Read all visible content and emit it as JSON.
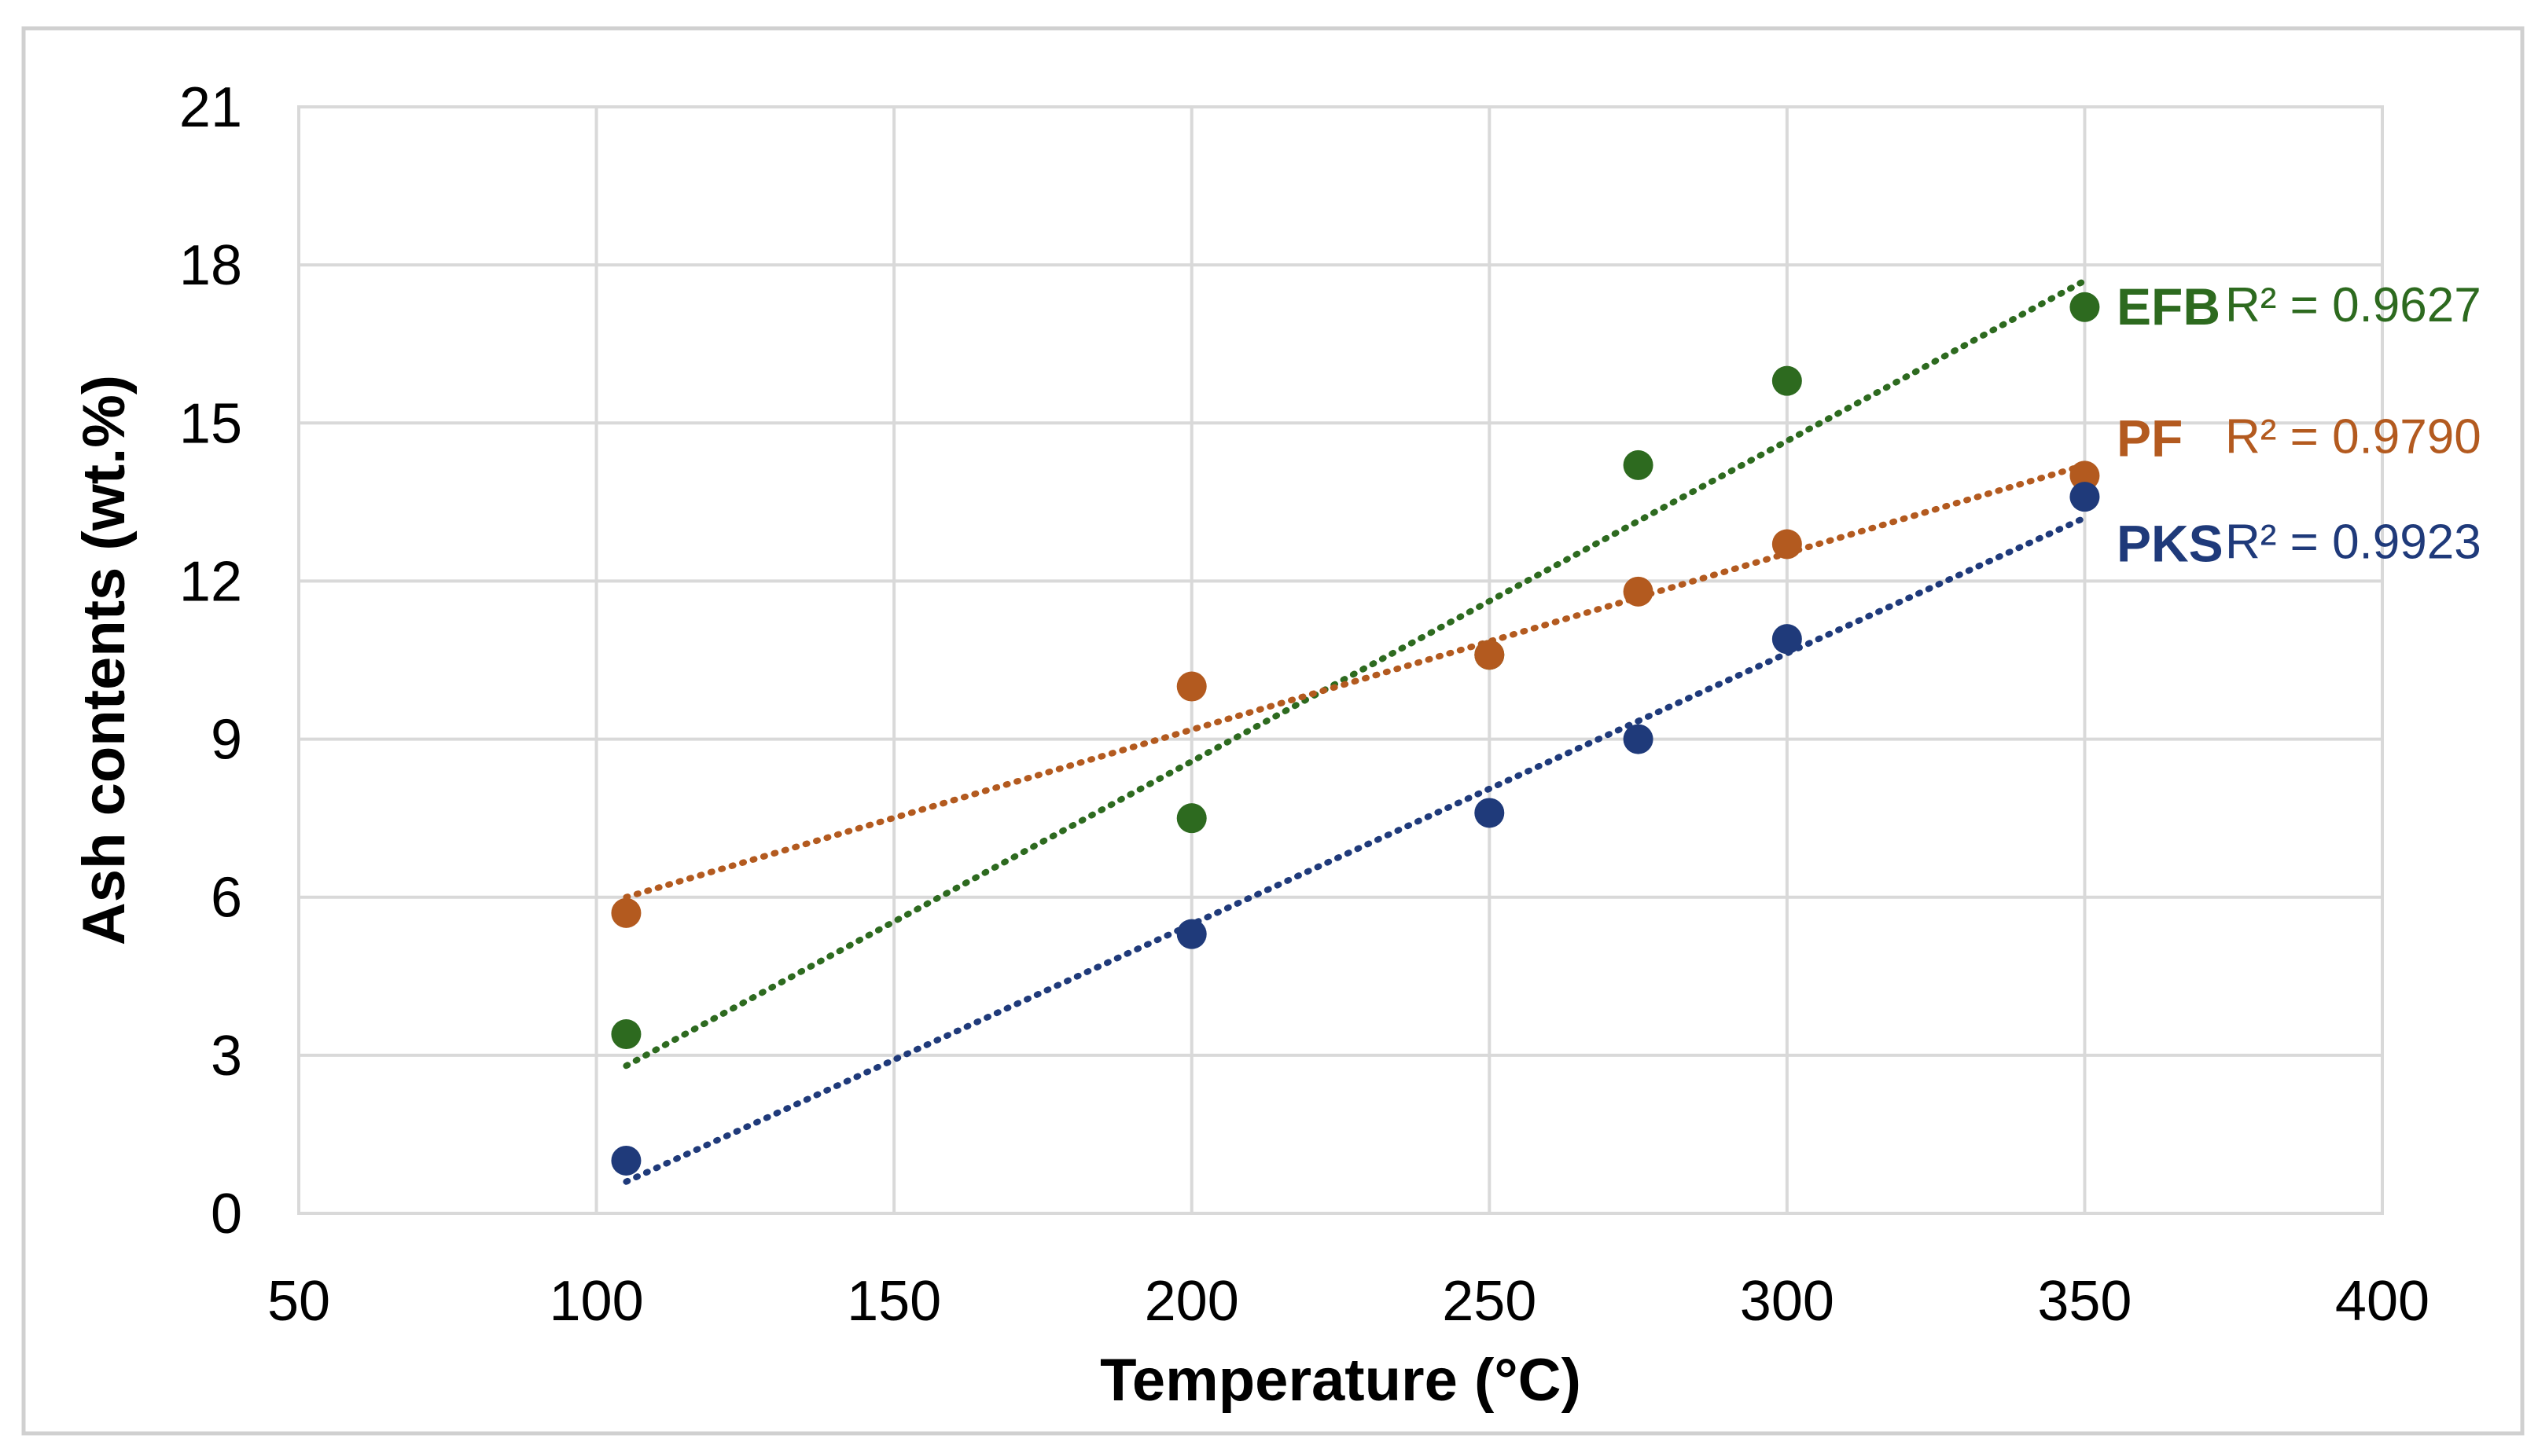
{
  "chart_data": {
    "type": "scatter",
    "title": "",
    "xlabel": "Temperature (°C)",
    "ylabel": "Ash contents (wt.%)",
    "xlim": [
      50,
      400
    ],
    "ylim": [
      0,
      21
    ],
    "x_ticks": [
      50,
      100,
      150,
      200,
      250,
      300,
      350,
      400
    ],
    "y_ticks": [
      0,
      3,
      6,
      9,
      12,
      15,
      18,
      21
    ],
    "grid": true,
    "legend": "inline-right",
    "series": [
      {
        "name": "EFB",
        "color": "#2d6a1f",
        "x": [
          105,
          200,
          250,
          275,
          300,
          350
        ],
        "y": [
          3.4,
          7.5,
          10.6,
          14.2,
          15.8,
          17.2
        ],
        "trendline": {
          "type": "linear",
          "x": [
            105,
            350
          ],
          "y": [
            2.8,
            17.7
          ]
        },
        "r2_label": "R² = 0.9627"
      },
      {
        "name": "PF",
        "color": "#b35a1f",
        "x": [
          105,
          200,
          250,
          275,
          300,
          350
        ],
        "y": [
          5.7,
          10.0,
          10.6,
          11.8,
          12.7,
          14.0
        ],
        "trendline": {
          "type": "linear",
          "x": [
            105,
            350
          ],
          "y": [
            6.0,
            14.2
          ]
        },
        "r2_label": "R² = 0.9790"
      },
      {
        "name": "PKS",
        "color": "#1f3a7a",
        "x": [
          105,
          200,
          250,
          275,
          300,
          350
        ],
        "y": [
          1.0,
          5.3,
          7.6,
          9.0,
          10.9,
          13.6
        ],
        "trendline": {
          "type": "linear",
          "x": [
            105,
            350
          ],
          "y": [
            0.6,
            13.2
          ]
        },
        "r2_label": "R² = 0.9923"
      }
    ]
  }
}
